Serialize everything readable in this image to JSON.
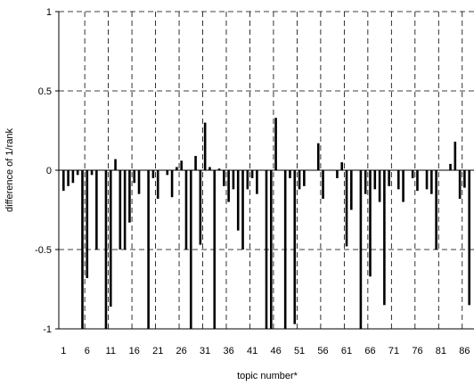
{
  "chart_data": {
    "type": "bar",
    "xlabel": "topic number*",
    "ylabel": "difference of 1/rank",
    "ylim": [
      -1,
      1
    ],
    "yticks": [
      1,
      0.5,
      0,
      -0.5,
      -1
    ],
    "ytick_labels": [
      "1",
      "0.5",
      "0",
      "-0.5",
      "-1"
    ],
    "xlim": [
      0,
      88
    ],
    "xticks": [
      1,
      6,
      11,
      16,
      21,
      26,
      31,
      36,
      41,
      46,
      51,
      56,
      61,
      66,
      71,
      76,
      81,
      86
    ],
    "xtick_labels": [
      "1",
      "6",
      "11",
      "16",
      "21",
      "26",
      "31",
      "36",
      "41",
      "46",
      "51",
      "56",
      "61",
      "66",
      "71",
      "76",
      "81",
      "86"
    ],
    "grid": "dashed, at y ticks and at x = 6, 11, ..., 86",
    "bar_color": "#000000",
    "x": [
      1,
      2,
      3,
      4,
      5,
      6,
      7,
      8,
      9,
      10,
      11,
      12,
      13,
      14,
      15,
      16,
      17,
      18,
      19,
      20,
      21,
      22,
      23,
      24,
      25,
      26,
      27,
      28,
      29,
      30,
      31,
      32,
      33,
      34,
      35,
      36,
      37,
      38,
      39,
      40,
      41,
      42,
      43,
      44,
      45,
      46,
      47,
      48,
      49,
      50,
      51,
      52,
      53,
      54,
      55,
      56,
      57,
      58,
      59,
      60,
      61,
      62,
      63,
      64,
      65,
      66,
      67,
      68,
      69,
      70,
      71,
      72,
      73,
      74,
      75,
      76,
      77,
      78,
      79,
      80,
      81,
      82,
      83,
      84,
      85,
      86,
      87
    ],
    "values": [
      -0.13,
      -0.1,
      -0.08,
      -0.03,
      -1.0,
      -0.68,
      -0.03,
      -0.5,
      0,
      -1.0,
      -0.86,
      0.07,
      -0.5,
      -0.5,
      -0.33,
      -0.08,
      -0.15,
      0,
      -1.0,
      -0.05,
      -0.18,
      0,
      -0.03,
      -0.17,
      0.02,
      0.06,
      -0.5,
      -1.0,
      0.09,
      -0.47,
      0.3,
      0.02,
      -1.0,
      0.01,
      -0.1,
      -0.2,
      -0.12,
      -0.38,
      -0.5,
      -0.12,
      -0.05,
      -0.15,
      0,
      -1.0,
      -1.0,
      0.33,
      0,
      -1.0,
      -0.05,
      -0.97,
      -0.12,
      -0.1,
      0,
      0,
      0.17,
      -0.18,
      0,
      0,
      -0.05,
      0.05,
      -0.48,
      -0.25,
      0,
      -1.0,
      -0.15,
      -0.67,
      -0.12,
      -0.2,
      -0.85,
      -0.1,
      0,
      -0.12,
      -0.2,
      0,
      -0.05,
      -0.13,
      0,
      -0.12,
      -0.15,
      -0.5,
      0,
      0,
      0.04,
      0.18,
      -0.18,
      -0.11,
      -0.85
    ]
  }
}
